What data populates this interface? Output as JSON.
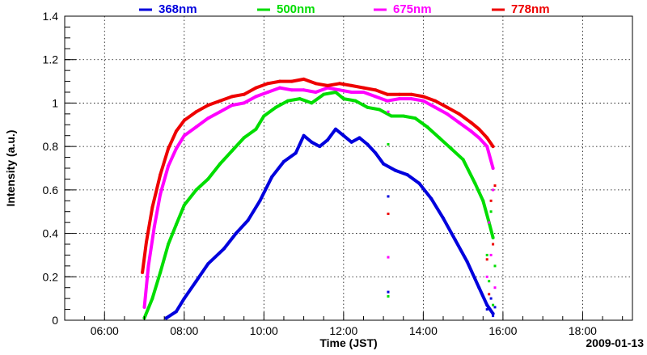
{
  "chart_data": {
    "type": "line",
    "title": "",
    "xlabel": "Time (JST)",
    "ylabel": "Intensity (a.u.)",
    "date_label": "2009-01-13",
    "x_unit": "hours",
    "xlim": [
      5.0,
      19.25
    ],
    "ylim": [
      0,
      1.4
    ],
    "x_ticks": [
      {
        "value": 6,
        "label": "06:00"
      },
      {
        "value": 8,
        "label": "08:00"
      },
      {
        "value": 10,
        "label": "10:00"
      },
      {
        "value": 12,
        "label": "12:00"
      },
      {
        "value": 14,
        "label": "14:00"
      },
      {
        "value": 16,
        "label": "16:00"
      },
      {
        "value": 18,
        "label": "18:00"
      }
    ],
    "y_ticks": [
      {
        "value": 0,
        "label": "0"
      },
      {
        "value": 0.2,
        "label": "0.2"
      },
      {
        "value": 0.4,
        "label": "0.4"
      },
      {
        "value": 0.6,
        "label": "0.6"
      },
      {
        "value": 0.8,
        "label": "0.8"
      },
      {
        "value": 1.0,
        "label": "1"
      },
      {
        "value": 1.2,
        "label": "1.2"
      },
      {
        "value": 1.4,
        "label": "1.4"
      }
    ],
    "grid": true,
    "legend_position": "top",
    "series": [
      {
        "name": "368nm",
        "color": "#0000dd",
        "points": [
          [
            7.55,
            0.01
          ],
          [
            7.8,
            0.04
          ],
          [
            8.0,
            0.1
          ],
          [
            8.3,
            0.18
          ],
          [
            8.6,
            0.26
          ],
          [
            9.0,
            0.33
          ],
          [
            9.3,
            0.4
          ],
          [
            9.6,
            0.46
          ],
          [
            9.9,
            0.55
          ],
          [
            10.2,
            0.66
          ],
          [
            10.5,
            0.73
          ],
          [
            10.8,
            0.77
          ],
          [
            11.0,
            0.85
          ],
          [
            11.2,
            0.82
          ],
          [
            11.4,
            0.8
          ],
          [
            11.6,
            0.83
          ],
          [
            11.8,
            0.88
          ],
          [
            12.0,
            0.85
          ],
          [
            12.2,
            0.82
          ],
          [
            12.4,
            0.84
          ],
          [
            12.6,
            0.81
          ],
          [
            12.8,
            0.77
          ],
          [
            13.0,
            0.72
          ],
          [
            13.3,
            0.69
          ],
          [
            13.6,
            0.67
          ],
          [
            13.9,
            0.63
          ],
          [
            14.2,
            0.56
          ],
          [
            14.5,
            0.47
          ],
          [
            14.8,
            0.37
          ],
          [
            15.1,
            0.27
          ],
          [
            15.4,
            0.15
          ],
          [
            15.6,
            0.07
          ],
          [
            15.75,
            0.03
          ]
        ],
        "scatter": [
          [
            13.12,
            0.57
          ],
          [
            13.12,
            0.13
          ],
          [
            15.6,
            0.05
          ],
          [
            15.7,
            0.1
          ],
          [
            15.75,
            0.02
          ],
          [
            15.8,
            0.06
          ]
        ]
      },
      {
        "name": "500nm",
        "color": "#00dd00",
        "points": [
          [
            7.0,
            0.01
          ],
          [
            7.2,
            0.1
          ],
          [
            7.4,
            0.22
          ],
          [
            7.6,
            0.35
          ],
          [
            7.8,
            0.44
          ],
          [
            8.0,
            0.53
          ],
          [
            8.3,
            0.6
          ],
          [
            8.6,
            0.65
          ],
          [
            8.9,
            0.72
          ],
          [
            9.2,
            0.78
          ],
          [
            9.5,
            0.84
          ],
          [
            9.8,
            0.88
          ],
          [
            10.0,
            0.94
          ],
          [
            10.3,
            0.98
          ],
          [
            10.6,
            1.01
          ],
          [
            10.9,
            1.02
          ],
          [
            11.2,
            1.0
          ],
          [
            11.5,
            1.04
          ],
          [
            11.8,
            1.05
          ],
          [
            12.0,
            1.02
          ],
          [
            12.3,
            1.01
          ],
          [
            12.6,
            0.98
          ],
          [
            12.9,
            0.97
          ],
          [
            13.2,
            0.94
          ],
          [
            13.5,
            0.94
          ],
          [
            13.8,
            0.93
          ],
          [
            14.1,
            0.89
          ],
          [
            14.4,
            0.84
          ],
          [
            14.7,
            0.79
          ],
          [
            15.0,
            0.74
          ],
          [
            15.3,
            0.63
          ],
          [
            15.5,
            0.55
          ],
          [
            15.65,
            0.45
          ],
          [
            15.75,
            0.38
          ]
        ],
        "scatter": [
          [
            13.12,
            0.81
          ],
          [
            13.12,
            0.11
          ],
          [
            15.6,
            0.3
          ],
          [
            15.65,
            0.18
          ],
          [
            15.7,
            0.5
          ],
          [
            15.75,
            0.07
          ],
          [
            15.8,
            0.25
          ]
        ]
      },
      {
        "name": "675nm",
        "color": "#ff00ff",
        "points": [
          [
            7.0,
            0.06
          ],
          [
            7.1,
            0.25
          ],
          [
            7.25,
            0.43
          ],
          [
            7.4,
            0.58
          ],
          [
            7.6,
            0.71
          ],
          [
            7.8,
            0.79
          ],
          [
            8.0,
            0.85
          ],
          [
            8.3,
            0.89
          ],
          [
            8.6,
            0.93
          ],
          [
            8.9,
            0.96
          ],
          [
            9.2,
            0.99
          ],
          [
            9.5,
            1.0
          ],
          [
            9.8,
            1.03
          ],
          [
            10.1,
            1.05
          ],
          [
            10.4,
            1.07
          ],
          [
            10.7,
            1.06
          ],
          [
            11.0,
            1.06
          ],
          [
            11.3,
            1.05
          ],
          [
            11.6,
            1.07
          ],
          [
            11.9,
            1.06
          ],
          [
            12.2,
            1.05
          ],
          [
            12.5,
            1.05
          ],
          [
            12.8,
            1.03
          ],
          [
            13.1,
            1.01
          ],
          [
            13.4,
            1.02
          ],
          [
            13.7,
            1.02
          ],
          [
            14.0,
            1.01
          ],
          [
            14.3,
            0.98
          ],
          [
            14.6,
            0.95
          ],
          [
            14.9,
            0.91
          ],
          [
            15.2,
            0.87
          ],
          [
            15.4,
            0.84
          ],
          [
            15.6,
            0.8
          ],
          [
            15.75,
            0.7
          ]
        ],
        "scatter": [
          [
            13.12,
            0.96
          ],
          [
            13.12,
            0.29
          ],
          [
            15.6,
            0.2
          ],
          [
            15.65,
            0.45
          ],
          [
            15.7,
            0.3
          ],
          [
            15.75,
            0.6
          ],
          [
            15.8,
            0.15
          ]
        ]
      },
      {
        "name": "778nm",
        "color": "#ee0000",
        "points": [
          [
            6.95,
            0.22
          ],
          [
            7.05,
            0.36
          ],
          [
            7.2,
            0.52
          ],
          [
            7.4,
            0.67
          ],
          [
            7.6,
            0.79
          ],
          [
            7.8,
            0.87
          ],
          [
            8.0,
            0.92
          ],
          [
            8.3,
            0.96
          ],
          [
            8.6,
            0.99
          ],
          [
            8.9,
            1.01
          ],
          [
            9.2,
            1.03
          ],
          [
            9.5,
            1.04
          ],
          [
            9.8,
            1.07
          ],
          [
            10.1,
            1.09
          ],
          [
            10.4,
            1.1
          ],
          [
            10.7,
            1.1
          ],
          [
            11.0,
            1.11
          ],
          [
            11.3,
            1.09
          ],
          [
            11.6,
            1.08
          ],
          [
            11.9,
            1.09
          ],
          [
            12.2,
            1.08
          ],
          [
            12.5,
            1.07
          ],
          [
            12.8,
            1.06
          ],
          [
            13.1,
            1.04
          ],
          [
            13.4,
            1.04
          ],
          [
            13.7,
            1.04
          ],
          [
            14.0,
            1.03
          ],
          [
            14.3,
            1.01
          ],
          [
            14.6,
            0.98
          ],
          [
            14.9,
            0.95
          ],
          [
            15.2,
            0.91
          ],
          [
            15.4,
            0.88
          ],
          [
            15.6,
            0.84
          ],
          [
            15.75,
            0.8
          ]
        ],
        "scatter": [
          [
            13.12,
            0.49
          ],
          [
            15.6,
            0.28
          ],
          [
            15.65,
            0.12
          ],
          [
            15.7,
            0.55
          ],
          [
            15.75,
            0.35
          ],
          [
            15.8,
            0.62
          ]
        ]
      }
    ]
  }
}
